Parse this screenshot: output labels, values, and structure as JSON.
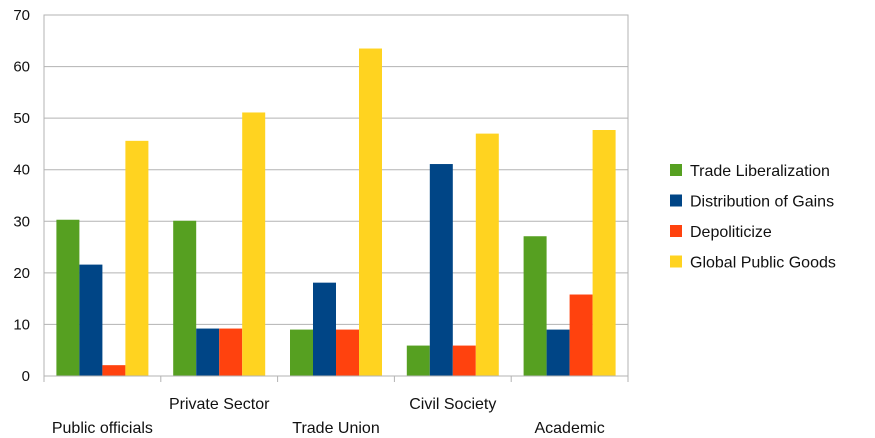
{
  "chart_data": {
    "type": "bar",
    "title": "",
    "xlabel": "",
    "ylabel": "",
    "categories": [
      "Public officials",
      "Private Sector",
      "Trade Union",
      "Civil Society",
      "Academic"
    ],
    "series": [
      {
        "name": "Trade Liberalization",
        "color": "#56a021",
        "values": [
          30.3,
          30.1,
          9.0,
          5.9,
          27.1
        ]
      },
      {
        "name": "Distribution of Gains",
        "color": "#004586",
        "values": [
          21.6,
          9.2,
          18.1,
          41.1,
          9.0
        ]
      },
      {
        "name": "Depoliticize",
        "color": "#ff420e",
        "values": [
          2.1,
          9.2,
          9.0,
          5.9,
          15.8
        ]
      },
      {
        "name": "Global Public Goods",
        "color": "#ffd320",
        "values": [
          45.6,
          51.1,
          63.5,
          47.0,
          47.7
        ]
      }
    ],
    "ylim": [
      0,
      70
    ],
    "yticks": [
      0,
      10,
      20,
      30,
      40,
      50,
      60,
      70
    ],
    "grid": true,
    "legend": "right"
  }
}
